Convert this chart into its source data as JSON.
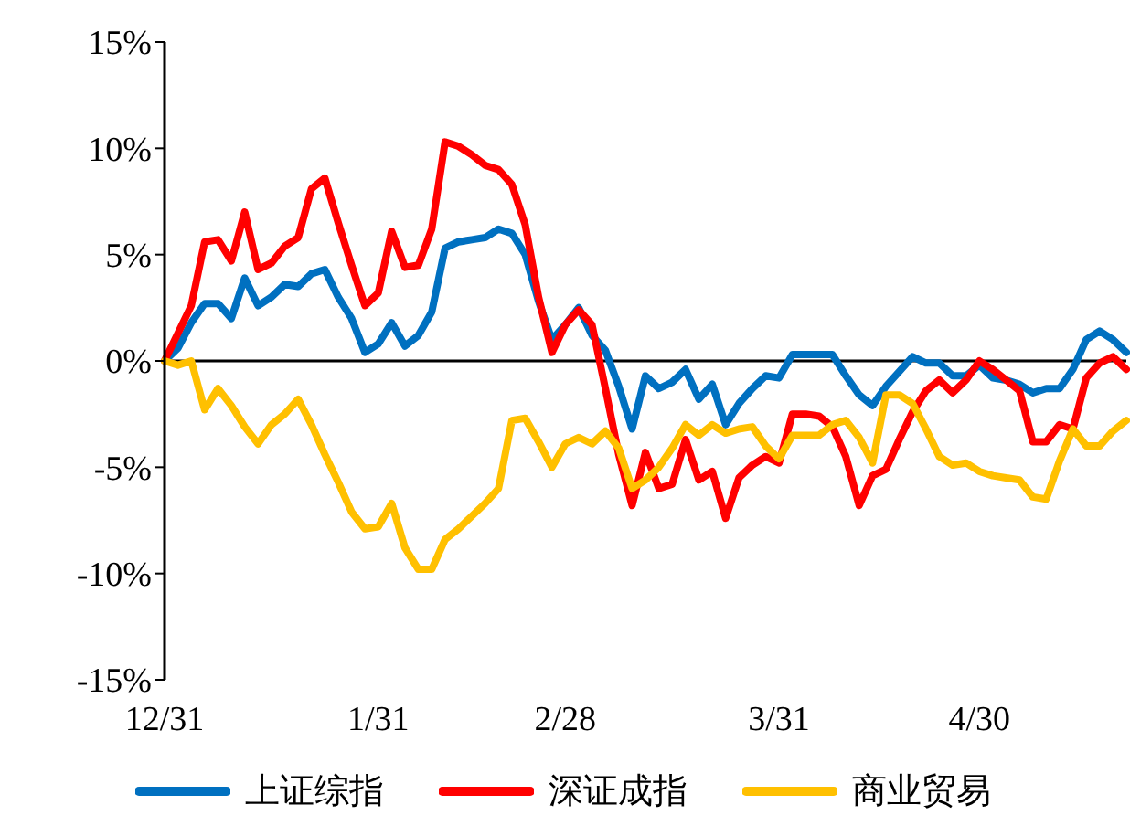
{
  "chart_data": {
    "type": "line",
    "categories": [
      "12/31",
      null,
      null,
      null,
      null,
      null,
      null,
      null,
      null,
      null,
      null,
      null,
      null,
      null,
      null,
      null,
      "1/31",
      null,
      null,
      null,
      null,
      null,
      null,
      null,
      null,
      null,
      null,
      null,
      null,
      null,
      "2/28",
      null,
      null,
      null,
      null,
      null,
      null,
      null,
      null,
      null,
      null,
      null,
      null,
      null,
      null,
      null,
      "3/31",
      null,
      null,
      null,
      null,
      null,
      null,
      null,
      null,
      null,
      null,
      null,
      null,
      null,
      null,
      "4/30",
      null,
      null,
      null,
      null,
      null,
      null,
      null,
      null,
      null,
      null,
      null
    ],
    "ylim": [
      -15,
      15
    ],
    "yticks": [
      {
        "value": -15,
        "label": "-15%"
      },
      {
        "value": -10,
        "label": "-10%"
      },
      {
        "value": -5,
        "label": "-5%"
      },
      {
        "value": 0,
        "label": "0%"
      },
      {
        "value": 5,
        "label": "5%"
      },
      {
        "value": 10,
        "label": "10%"
      },
      {
        "value": 15,
        "label": "15%"
      }
    ],
    "grid": false,
    "legend": "bottom",
    "marker": "none",
    "line_style": "solid",
    "ref_lines": [
      {
        "axis": "y",
        "value": 0,
        "color": "#000000"
      }
    ],
    "series": [
      {
        "name": "上证综指",
        "color": "#0070c0",
        "values": [
          0,
          0.6,
          1.8,
          2.7,
          2.7,
          2.0,
          3.9,
          2.6,
          3.0,
          3.6,
          3.5,
          4.1,
          4.3,
          3.0,
          2.0,
          0.4,
          0.8,
          1.8,
          0.7,
          1.2,
          2.3,
          5.3,
          5.6,
          5.7,
          5.8,
          6.2,
          6.0,
          5.0,
          2.8,
          1.0,
          1.7,
          2.5,
          1.2,
          0.5,
          -1.2,
          -3.2,
          -0.7,
          -1.3,
          -1.0,
          -0.4,
          -1.8,
          -1.1,
          -3.0,
          -2.0,
          -1.3,
          -0.7,
          -0.8,
          0.3,
          0.3,
          0.3,
          0.3,
          -0.7,
          -1.6,
          -2.1,
          -1.2,
          -0.5,
          0.2,
          -0.1,
          -0.1,
          -0.7,
          -0.7,
          -0.2,
          -0.8,
          -0.9,
          -1.1,
          -1.5,
          -1.3,
          -1.3,
          -0.4,
          1.0,
          1.4,
          1.0,
          0.4
        ]
      },
      {
        "name": "深证成指",
        "color": "#ff0000",
        "values": [
          0,
          1.3,
          2.6,
          5.6,
          5.7,
          4.7,
          7.0,
          4.3,
          4.6,
          5.4,
          5.8,
          8.1,
          8.6,
          6.5,
          4.5,
          2.6,
          3.2,
          6.1,
          4.4,
          4.5,
          6.2,
          10.3,
          10.1,
          9.7,
          9.2,
          9.0,
          8.3,
          6.4,
          3.0,
          0.4,
          1.7,
          2.4,
          1.7,
          -1.3,
          -4.4,
          -6.8,
          -4.3,
          -6.0,
          -5.8,
          -3.7,
          -5.6,
          -5.2,
          -7.4,
          -5.5,
          -4.9,
          -4.5,
          -4.8,
          -2.5,
          -2.5,
          -2.6,
          -3.1,
          -4.5,
          -6.8,
          -5.4,
          -5.1,
          -3.7,
          -2.4,
          -1.4,
          -0.9,
          -1.5,
          -0.9,
          0.0,
          -0.4,
          -0.9,
          -1.4,
          -3.8,
          -3.8,
          -3.0,
          -3.2,
          -0.8,
          -0.1,
          0.2,
          -0.4
        ]
      },
      {
        "name": "商业贸易",
        "color": "#ffc000",
        "values": [
          0,
          -0.2,
          0.0,
          -2.3,
          -1.3,
          -2.1,
          -3.1,
          -3.9,
          -3.0,
          -2.5,
          -1.8,
          -3.0,
          -4.4,
          -5.7,
          -7.1,
          -7.9,
          -7.8,
          -6.7,
          -8.8,
          -9.8,
          -9.8,
          -8.4,
          -7.9,
          -7.3,
          -6.7,
          -6.0,
          -2.8,
          -2.7,
          -3.8,
          -5.0,
          -3.9,
          -3.6,
          -3.9,
          -3.3,
          -4.1,
          -6.0,
          -5.6,
          -5.0,
          -4.1,
          -3.0,
          -3.5,
          -3.0,
          -3.4,
          -3.2,
          -3.1,
          -4.0,
          -4.6,
          -3.5,
          -3.5,
          -3.5,
          -3.0,
          -2.8,
          -3.6,
          -4.8,
          -1.6,
          -1.6,
          -2.0,
          -3.2,
          -4.5,
          -4.9,
          -4.8,
          -5.2,
          -5.4,
          -5.5,
          -5.6,
          -6.4,
          -6.5,
          -4.7,
          -3.2,
          -4.0,
          -4.0,
          -3.3,
          -2.8
        ]
      }
    ]
  }
}
